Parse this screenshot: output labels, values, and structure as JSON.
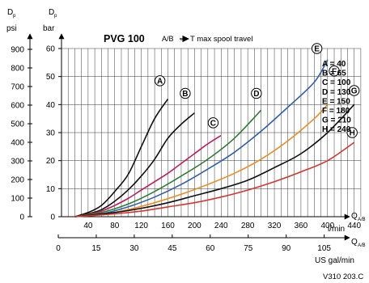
{
  "chart_data": {
    "type": "line",
    "title": "PVG 100",
    "subtitle_prefix": "A/B",
    "subtitle_arrow": "→",
    "subtitle_suffix": "T max spool travel",
    "y_left_symbol": "D",
    "y_left_sub": "p",
    "y_left_unit": "psi",
    "y_right_symbol": "D",
    "y_right_sub": "p",
    "y_right_unit": "bar",
    "x_symbol": "Q",
    "x_sub": "A/B",
    "x_unit": "l/min",
    "x2_symbol": "Q",
    "x2_sub": "A/B",
    "x2_unit": "US gal/min",
    "figure_code": "V310 203.C",
    "xlim": [
      0,
      450
    ],
    "ylim": [
      0,
      60
    ],
    "bar_ticks": [
      0,
      10,
      20,
      30,
      40,
      50,
      60
    ],
    "lpm_ticks": [
      40,
      80,
      120,
      160,
      200,
      240,
      280,
      320,
      360,
      400,
      440
    ],
    "psi_ticks": [
      0,
      100,
      200,
      300,
      400,
      500,
      600,
      700,
      800,
      900
    ],
    "gpm_ticks": [
      0,
      15,
      30,
      45,
      60,
      75,
      90,
      105
    ],
    "grid": true,
    "legend": [
      {
        "key": "A",
        "text": "A = 40"
      },
      {
        "key": "B",
        "text": "B = 65"
      },
      {
        "key": "C",
        "text": "C = 100"
      },
      {
        "key": "D",
        "text": "D = 130"
      },
      {
        "key": "E",
        "text": "E = 150"
      },
      {
        "key": "F",
        "text": "F = 180"
      },
      {
        "key": "G",
        "text": "G = 210"
      },
      {
        "key": "H",
        "text": "H = 240"
      }
    ],
    "series": [
      {
        "label": "A",
        "color": "#111111",
        "label_at": [
          148,
          48.5
        ],
        "points": [
          [
            20,
            0
          ],
          [
            40,
            1.5
          ],
          [
            60,
            4
          ],
          [
            80,
            9
          ],
          [
            100,
            15
          ],
          [
            120,
            25
          ],
          [
            140,
            35
          ],
          [
            160,
            42
          ]
        ]
      },
      {
        "label": "B",
        "color": "#111111",
        "label_at": [
          186,
          44
        ],
        "points": [
          [
            20,
            0
          ],
          [
            40,
            1
          ],
          [
            60,
            2.5
          ],
          [
            80,
            5.5
          ],
          [
            100,
            9.5
          ],
          [
            120,
            14.5
          ],
          [
            140,
            20.5
          ],
          [
            160,
            28
          ],
          [
            180,
            33
          ],
          [
            200,
            37
          ]
        ]
      },
      {
        "label": "C",
        "color": "#c51a5a",
        "label_at": [
          228,
          33.5
        ],
        "points": [
          [
            20,
            0
          ],
          [
            40,
            0.8
          ],
          [
            60,
            2
          ],
          [
            80,
            4
          ],
          [
            100,
            6.5
          ],
          [
            120,
            9.5
          ],
          [
            140,
            12.5
          ],
          [
            160,
            15.5
          ],
          [
            180,
            19
          ],
          [
            200,
            22.5
          ],
          [
            220,
            26
          ],
          [
            240,
            29
          ]
        ]
      },
      {
        "label": "D",
        "color": "#2e7d32",
        "label_at": [
          293,
          44
        ],
        "points": [
          [
            20,
            0
          ],
          [
            60,
            1.5
          ],
          [
            100,
            4.5
          ],
          [
            140,
            9
          ],
          [
            180,
            14.5
          ],
          [
            220,
            20.5
          ],
          [
            260,
            28
          ],
          [
            300,
            38
          ]
        ]
      },
      {
        "label": "E",
        "color": "#2f5fb0",
        "label_at": [
          384,
          60
        ],
        "points": [
          [
            20,
            0
          ],
          [
            60,
            1
          ],
          [
            100,
            3.5
          ],
          [
            140,
            7
          ],
          [
            180,
            11.5
          ],
          [
            220,
            17
          ],
          [
            260,
            23
          ],
          [
            300,
            30.5
          ],
          [
            340,
            39
          ],
          [
            380,
            48
          ],
          [
            400,
            56
          ]
        ]
      },
      {
        "label": "F",
        "color": "#ef8a1f",
        "label_at": [
          410,
          52
        ],
        "points": [
          [
            20,
            0
          ],
          [
            60,
            0.8
          ],
          [
            100,
            2.5
          ],
          [
            140,
            5
          ],
          [
            180,
            8
          ],
          [
            220,
            11.5
          ],
          [
            260,
            15.5
          ],
          [
            300,
            20.5
          ],
          [
            340,
            27
          ],
          [
            380,
            35
          ],
          [
            400,
            40
          ]
        ]
      },
      {
        "label": "G",
        "color": "#111111",
        "label_at": [
          440,
          45
        ],
        "points": [
          [
            20,
            0
          ],
          [
            80,
            1.5
          ],
          [
            120,
            3
          ],
          [
            160,
            5
          ],
          [
            200,
            7.5
          ],
          [
            240,
            10
          ],
          [
            280,
            13
          ],
          [
            320,
            17.5
          ],
          [
            360,
            22.5
          ],
          [
            400,
            30
          ],
          [
            440,
            40
          ]
        ]
      },
      {
        "label": "H",
        "color": "#d9352a",
        "label_at": [
          437,
          30
        ],
        "points": [
          [
            20,
            0
          ],
          [
            80,
            1
          ],
          [
            120,
            2
          ],
          [
            160,
            3.5
          ],
          [
            200,
            5
          ],
          [
            240,
            7
          ],
          [
            280,
            9.5
          ],
          [
            320,
            12.5
          ],
          [
            360,
            16
          ],
          [
            400,
            20
          ],
          [
            440,
            26.5
          ]
        ]
      }
    ]
  }
}
